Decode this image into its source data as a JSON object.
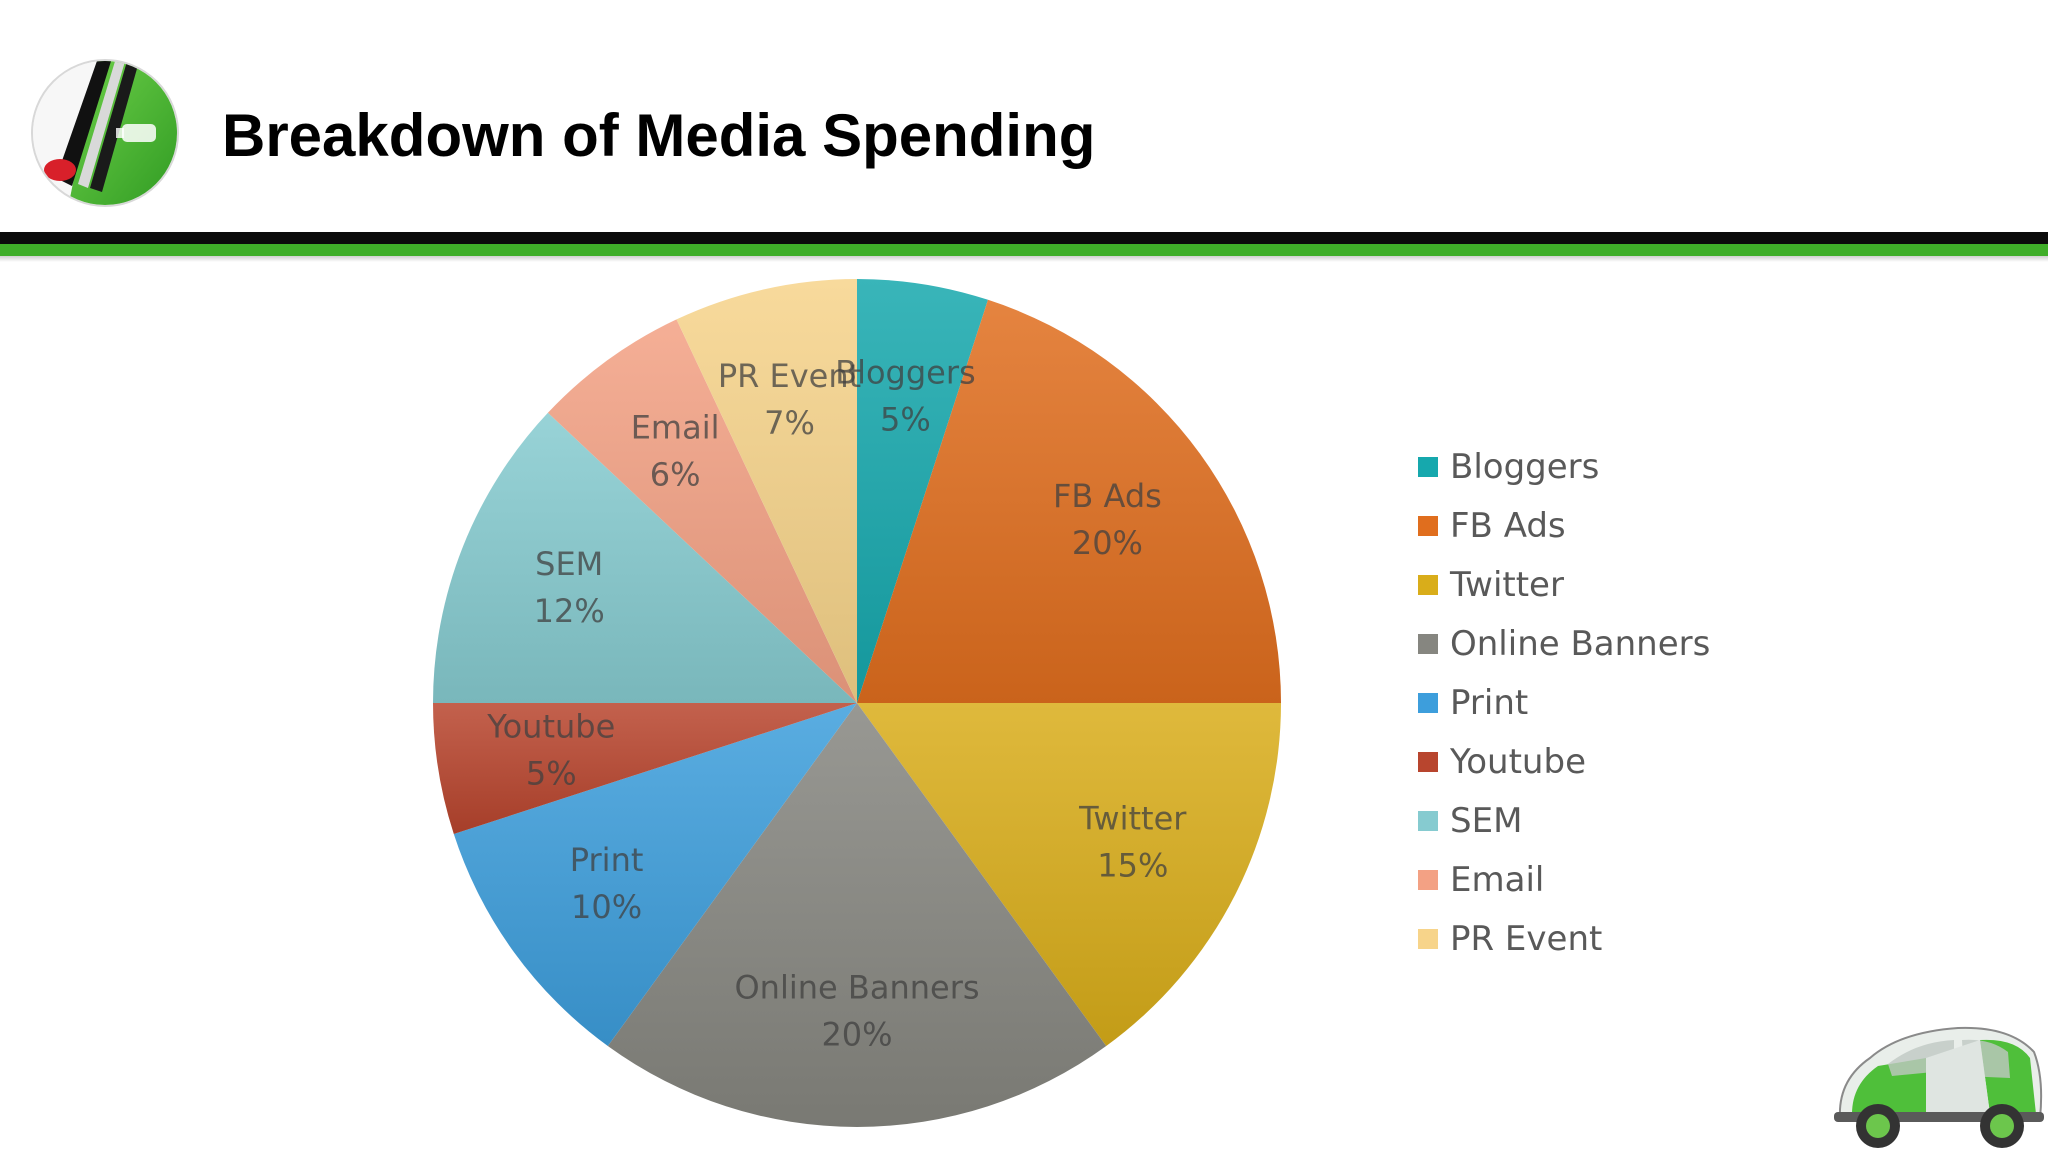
{
  "slide": {
    "title": "Breakdown of Media Spending",
    "colors": {
      "band_black": "#0b0b0b",
      "band_green": "#3fae29"
    },
    "logo_icon": "green-car-door-logo-icon",
    "car_icon": "green-smart-car-icon"
  },
  "chart_data": {
    "type": "pie",
    "title": "",
    "legend_position": "right",
    "categories": [
      "Bloggers",
      "FB Ads",
      "Twitter",
      "Online Banners",
      "Print",
      "Youtube",
      "SEM",
      "Email",
      "PR Event"
    ],
    "values": [
      5,
      20,
      15,
      20,
      10,
      5,
      12,
      6,
      7
    ],
    "value_labels": [
      "5%",
      "20%",
      "15%",
      "20%",
      "10%",
      "5%",
      "12%",
      "6%",
      "7%"
    ],
    "unit": "%",
    "colors": [
      "#16a8ad",
      "#e06e1e",
      "#d9ad1a",
      "#868680",
      "#3d9edc",
      "#b8452e",
      "#86cbd0",
      "#f3a184",
      "#f7d48a"
    ]
  }
}
